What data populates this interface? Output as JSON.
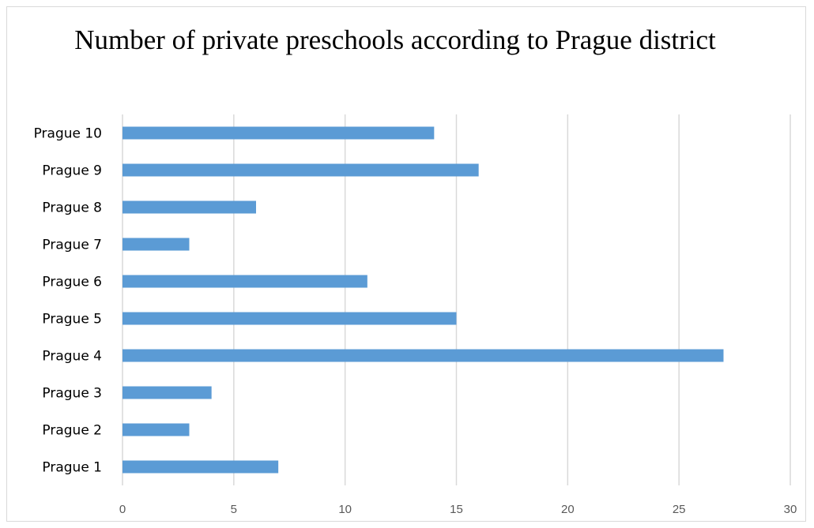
{
  "chart_data": {
    "type": "bar",
    "orientation": "horizontal",
    "title": "Number of private preschools according to Prague district",
    "categories": [
      "Prague 1",
      "Prague 2",
      "Prague 3",
      "Prague 4",
      "Prague 5",
      "Prague 6",
      "Prague 7",
      "Prague 8",
      "Prague 9",
      "Prague 10"
    ],
    "values": [
      7,
      3,
      4,
      27,
      15,
      11,
      3,
      6,
      16,
      14
    ],
    "xlim": [
      0,
      30
    ],
    "xticks": [
      0,
      5,
      10,
      15,
      20,
      25,
      30
    ],
    "grid": "vertical",
    "bar_color": "#5b9bd5",
    "grid_color": "#d9d9d9"
  }
}
